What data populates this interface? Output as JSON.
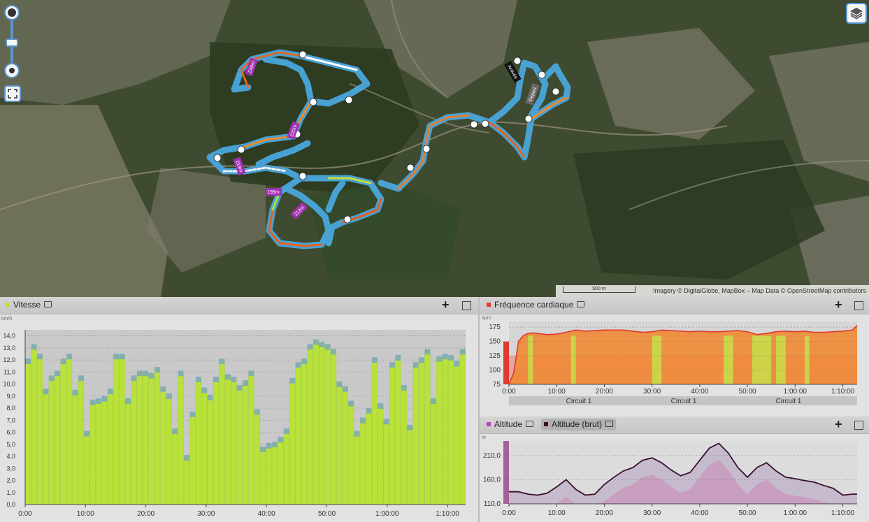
{
  "map": {
    "distance_markers": [
      "248m",
      "220m",
      "219m",
      "199m",
      "213m"
    ],
    "start_label": "Départ",
    "finish_label": "Arrivée",
    "scale_label": "500 m",
    "attribution": "Imagery © DigitalGlobe, MapBox – Map Data © OpenStreetMap contributors",
    "icons": {
      "zoom": "zoom-slider-icon",
      "fullscreen": "fullscreen-icon",
      "layers": "layers-icon",
      "arrow": "direction-arrow-icon"
    }
  },
  "speed": {
    "title": "Vitesse",
    "unit": "km/h",
    "color": "#b8e23a",
    "y_ticks": [
      "0,0",
      "1,0",
      "2,0",
      "3,0",
      "4,0",
      "5,0",
      "6,0",
      "7,0",
      "8,0",
      "9,0",
      "10,0",
      "11,0",
      "12,0",
      "13,0",
      "14,0"
    ],
    "x_ticks": [
      "0:00",
      "10:00",
      "20:00",
      "30:00",
      "40:00",
      "50:00",
      "1:00:00",
      "1:10:00"
    ]
  },
  "heart_rate": {
    "title": "Fréquence cardiaque",
    "unit": "bpm",
    "color": "#e03a2e",
    "y_ticks": [
      "75",
      "100",
      "125",
      "150",
      "175"
    ],
    "x_ticks": [
      "0:00",
      "10:00",
      "20:00",
      "30:00",
      "40:00",
      "50:00",
      "1:00:00",
      "1:10:00"
    ],
    "laps": [
      "Circuit 1",
      "Circuit 1",
      "Circuit 1"
    ]
  },
  "altitude": {
    "title": "Altitude",
    "title_raw": "Altitude (brut)",
    "unit": "m",
    "color": "#c040c0",
    "raw_color": "#3a1030",
    "y_ticks": [
      "110,0",
      "160,0",
      "210,0"
    ],
    "x_ticks": [
      "0:00",
      "10:00",
      "20:00",
      "30:00",
      "40:00",
      "50:00",
      "1:00:00",
      "1:10:00"
    ]
  },
  "chart_data": [
    {
      "type": "bar",
      "title": "Vitesse",
      "ylabel": "km/h",
      "ylim": [
        0,
        14.5
      ],
      "x_range": [
        "0:00",
        "1:13:00"
      ],
      "values": [
        12.0,
        13.2,
        12.4,
        9.5,
        10.6,
        11.0,
        12.0,
        12.4,
        9.4,
        10.6,
        6.0,
        8.6,
        8.7,
        8.9,
        9.5,
        12.4,
        12.4,
        8.7,
        10.6,
        11.0,
        11.0,
        10.8,
        11.3,
        9.7,
        9.1,
        6.2,
        11.0,
        4.0,
        7.6,
        10.5,
        9.6,
        9.0,
        10.5,
        12.0,
        10.7,
        10.5,
        9.8,
        10.2,
        11.0,
        7.8,
        4.7,
        5.0,
        5.1,
        5.5,
        6.2,
        10.4,
        11.7,
        12.0,
        13.2,
        13.6,
        13.4,
        13.2,
        12.8,
        10.1,
        9.7,
        8.5,
        6.0,
        7.1,
        7.9,
        12.1,
        8.3,
        7.0,
        11.7,
        12.3,
        9.8,
        6.5,
        11.7,
        12.1,
        12.8,
        8.7,
        12.2,
        12.4,
        12.3,
        11.8,
        12.8
      ]
    },
    {
      "type": "area",
      "title": "Fréquence cardiaque",
      "ylabel": "bpm",
      "ylim": [
        75,
        185
      ],
      "x": [
        0,
        1,
        2,
        3,
        4,
        5,
        6,
        8,
        10,
        12,
        14,
        16,
        18,
        20,
        22,
        24,
        26,
        28,
        30,
        32,
        34,
        36,
        38,
        40,
        42,
        44,
        46,
        48,
        50,
        52,
        54,
        56,
        58,
        60,
        62,
        64,
        66,
        68,
        70,
        72,
        73
      ],
      "values": [
        75,
        95,
        150,
        160,
        164,
        165,
        164,
        162,
        163,
        166,
        170,
        168,
        169,
        170,
        170,
        170,
        168,
        166,
        167,
        170,
        169,
        168,
        167,
        168,
        167,
        167,
        168,
        169,
        167,
        162,
        164,
        167,
        168,
        167,
        168,
        166,
        166,
        167,
        168,
        170,
        178
      ]
    },
    {
      "type": "line",
      "title": "Altitude (brut)",
      "ylabel": "m",
      "ylim": [
        110,
        240
      ],
      "x": [
        0,
        2,
        4,
        6,
        8,
        10,
        12,
        14,
        16,
        18,
        20,
        22,
        24,
        26,
        28,
        30,
        32,
        34,
        36,
        38,
        40,
        42,
        44,
        46,
        48,
        50,
        52,
        54,
        56,
        58,
        60,
        62,
        64,
        66,
        68,
        70,
        72,
        73
      ],
      "values": [
        135,
        135,
        130,
        128,
        132,
        145,
        160,
        140,
        128,
        130,
        150,
        165,
        178,
        185,
        200,
        205,
        195,
        180,
        168,
        175,
        200,
        225,
        235,
        215,
        185,
        165,
        185,
        195,
        178,
        165,
        162,
        158,
        155,
        148,
        142,
        128,
        130,
        130
      ]
    }
  ]
}
